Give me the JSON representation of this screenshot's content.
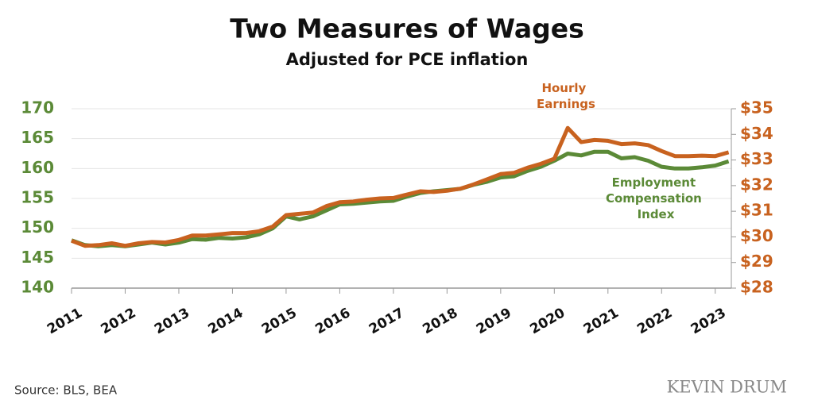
{
  "chart_data": {
    "type": "line",
    "title": "Two Measures of Wages",
    "subtitle": "Adjusted for PCE inflation",
    "x": [
      2011,
      2011.25,
      2011.5,
      2011.75,
      2012,
      2012.25,
      2012.5,
      2012.75,
      2013,
      2013.25,
      2013.5,
      2013.75,
      2014,
      2014.25,
      2014.5,
      2014.75,
      2015,
      2015.25,
      2015.5,
      2015.75,
      2016,
      2016.25,
      2016.5,
      2016.75,
      2017,
      2017.25,
      2017.5,
      2017.75,
      2018,
      2018.25,
      2018.5,
      2018.75,
      2019,
      2019.25,
      2019.5,
      2019.75,
      2020,
      2020.25,
      2020.5,
      2020.75,
      2021,
      2021.25,
      2021.5,
      2021.75,
      2022,
      2022.25,
      2022.5,
      2022.75,
      2023,
      2023.25
    ],
    "xlim": [
      2011,
      2023.3
    ],
    "xticks": [
      2011,
      2012,
      2013,
      2014,
      2015,
      2016,
      2017,
      2018,
      2019,
      2020,
      2021,
      2022,
      2023
    ],
    "ylim": [
      140,
      170
    ],
    "yticks": [
      140,
      145,
      150,
      155,
      160,
      165,
      170
    ],
    "y2lim": [
      28,
      35
    ],
    "y2ticks": [
      {
        "value": 28,
        "label": "$28"
      },
      {
        "value": 29,
        "label": "$29"
      },
      {
        "value": 30,
        "label": "$30"
      },
      {
        "value": 31,
        "label": "$31"
      },
      {
        "value": 32,
        "label": "$32"
      },
      {
        "value": 33,
        "label": "$33"
      },
      {
        "value": 34,
        "label": "$34"
      },
      {
        "value": 35,
        "label": "$35"
      }
    ],
    "grid": true,
    "ycolor": "#5b8a37",
    "y2color": "#c8621f",
    "series": [
      {
        "name": "Employment Compensation Index",
        "color": "#5b8a37",
        "axis": "y",
        "values": [
          148.0,
          147.2,
          147.0,
          147.2,
          147.0,
          147.3,
          147.6,
          147.3,
          147.6,
          148.2,
          148.1,
          148.4,
          148.3,
          148.5,
          149.0,
          150.0,
          152.0,
          151.5,
          152.0,
          153.0,
          154.0,
          154.1,
          154.3,
          154.5,
          154.6,
          155.3,
          155.9,
          156.2,
          156.4,
          156.6,
          157.3,
          157.8,
          158.5,
          158.7,
          159.6,
          160.3,
          161.3,
          162.5,
          162.2,
          162.8,
          162.8,
          161.7,
          161.9,
          161.3,
          160.3,
          160.0,
          160.0,
          160.2,
          160.5,
          161.2
        ]
      },
      {
        "name": "Hourly Earnings",
        "color": "#c8621f",
        "axis": "y2",
        "values": [
          29.85,
          29.65,
          29.68,
          29.75,
          29.65,
          29.75,
          29.8,
          29.78,
          29.88,
          30.05,
          30.05,
          30.1,
          30.15,
          30.15,
          30.22,
          30.4,
          30.85,
          30.9,
          30.95,
          31.2,
          31.35,
          31.38,
          31.45,
          31.5,
          31.52,
          31.65,
          31.78,
          31.75,
          31.8,
          31.88,
          32.05,
          32.25,
          32.45,
          32.5,
          32.7,
          32.85,
          33.05,
          34.25,
          33.7,
          33.78,
          33.75,
          33.62,
          33.65,
          33.58,
          33.35,
          33.15,
          33.15,
          33.17,
          33.15,
          33.3
        ]
      }
    ],
    "source": "Source: BLS, BEA",
    "watermark": "KEVIN DRUM"
  }
}
